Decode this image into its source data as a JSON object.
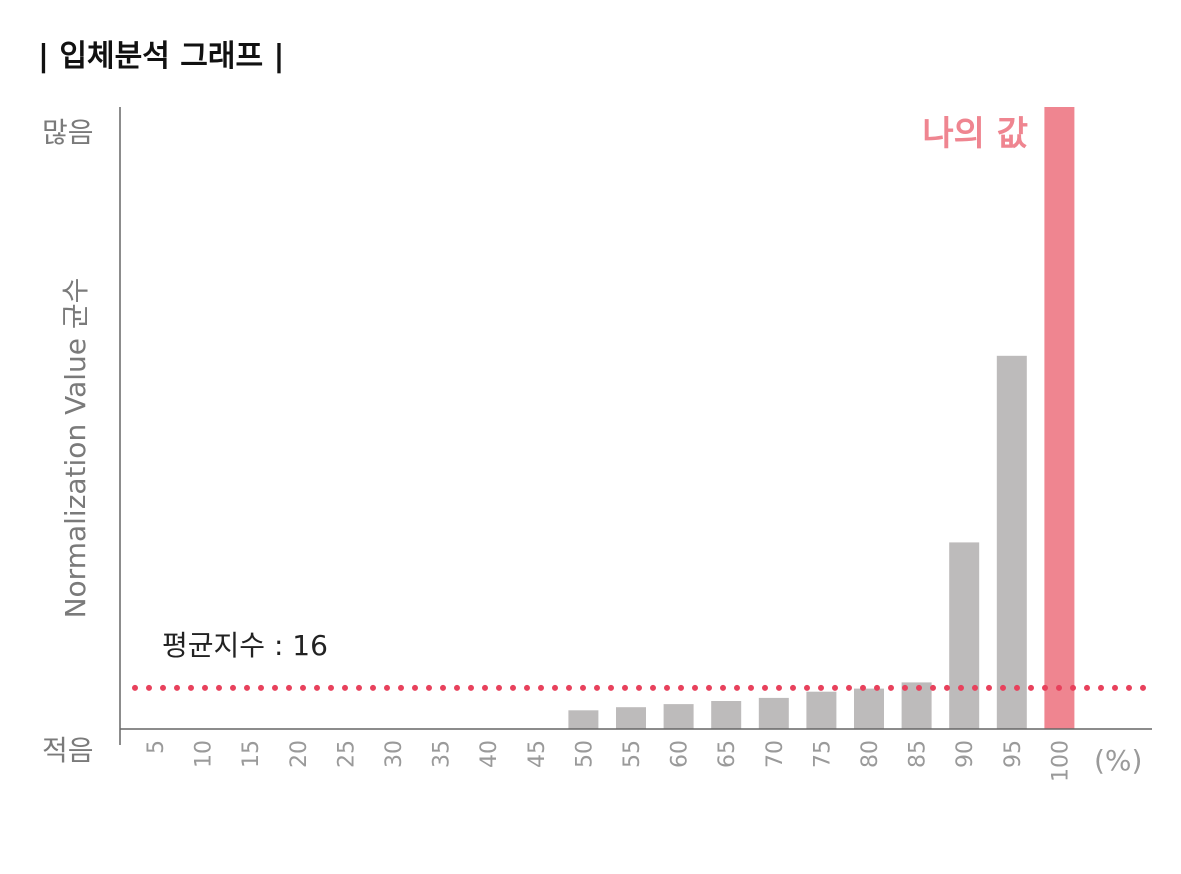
{
  "chart_data": {
    "type": "bar",
    "title": "| 입체분석 그래프 |",
    "categories": [
      "5",
      "10",
      "15",
      "20",
      "25",
      "30",
      "35",
      "40",
      "45",
      "50",
      "55",
      "60",
      "65",
      "70",
      "75",
      "80",
      "85",
      "90",
      "95",
      "100"
    ],
    "values": [
      0,
      0,
      0,
      0,
      0,
      0,
      0,
      0,
      0,
      3,
      3.5,
      4,
      4.5,
      5,
      6,
      6.5,
      7.5,
      30,
      60,
      100
    ],
    "ylim": [
      0,
      100
    ],
    "ylabel": "Normalization Value 균수",
    "y_top_label": "많음",
    "y_bottom_label": "적음",
    "x_unit_label": "(%)",
    "average": {
      "label": "평균지수 : 16",
      "value": 6.6
    },
    "highlight": {
      "category": "100",
      "label": "나의 값"
    },
    "colors": {
      "bar": "#bdbbbb",
      "highlight": "#ef8590",
      "average_line": "#e8415c",
      "axis": "#666666"
    },
    "grid": false
  }
}
